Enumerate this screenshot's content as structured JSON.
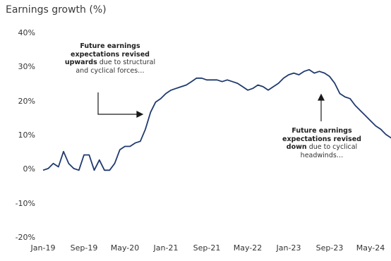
{
  "chart_data": {
    "type": "line",
    "title": "Earnings growth (%)",
    "xlabel": "",
    "ylabel": "",
    "ylim": [
      -20,
      40
    ],
    "yticks": [
      "40%",
      "30%",
      "20%",
      "10%",
      "0%",
      "-10%",
      "-20%"
    ],
    "ytick_values": [
      40,
      30,
      20,
      10,
      0,
      -10,
      -20
    ],
    "xticks": [
      "Jan-19",
      "Sep-19",
      "May-20",
      "Jan-21",
      "Sep-21",
      "May-22",
      "Jan-23",
      "Sep-23",
      "May-24"
    ],
    "xtick_values": [
      "2019-01",
      "2019-09",
      "2020-05",
      "2021-01",
      "2021-09",
      "2022-05",
      "2023-01",
      "2023-09",
      "2024-05"
    ],
    "grid": false,
    "line_color": "#1f3a6e",
    "series": [
      {
        "x": [
          "2019-01",
          "2019-02",
          "2019-03",
          "2019-04",
          "2019-05",
          "2019-06",
          "2019-07",
          "2019-08",
          "2019-09",
          "2019-10",
          "2019-11",
          "2019-12",
          "2020-01",
          "2020-02",
          "2020-03",
          "2020-04",
          "2020-05",
          "2020-06",
          "2020-07",
          "2020-08",
          "2020-09",
          "2020-10",
          "2020-11",
          "2020-12",
          "2021-01",
          "2021-02",
          "2021-03",
          "2021-04",
          "2021-05",
          "2021-06",
          "2021-07",
          "2021-08",
          "2021-09",
          "2021-10",
          "2021-11",
          "2021-12",
          "2022-01",
          "2022-02",
          "2022-03",
          "2022-04",
          "2022-05",
          "2022-06",
          "2022-07",
          "2022-08",
          "2022-09",
          "2022-10",
          "2022-11",
          "2022-12",
          "2023-01",
          "2023-02",
          "2023-03",
          "2023-04",
          "2023-05",
          "2023-06",
          "2023-07",
          "2023-08",
          "2023-09",
          "2023-10",
          "2023-11",
          "2023-12",
          "2024-01",
          "2024-02",
          "2024-03",
          "2024-04",
          "2024-05",
          "2024-06",
          "2024-07",
          "2024-08",
          "2024-09",
          "2024-10"
        ],
        "values": [
          0,
          0.5,
          2,
          1,
          5.5,
          2,
          0.5,
          0,
          4.5,
          4.5,
          0,
          3,
          0,
          0,
          2,
          6,
          7,
          7,
          8,
          8.5,
          12,
          17,
          20,
          21,
          22.5,
          23.5,
          24,
          24.5,
          25,
          26,
          27,
          27,
          26.5,
          26.5,
          26.5,
          26,
          26.5,
          26,
          25.5,
          24.5,
          23.5,
          24,
          25,
          24.5,
          23.5,
          24.5,
          25.5,
          27,
          28,
          28.5,
          28,
          29,
          29.5,
          28.5,
          29,
          28.5,
          27.5,
          25.5,
          22.5,
          21.5,
          21,
          19,
          17.5,
          16,
          14.5,
          13,
          12,
          10.5,
          9.5,
          9
        ]
      }
    ],
    "annotations": [
      {
        "bold1": "Future earnings",
        "bold2": "expectations revised",
        "bold3": "upwards",
        "normal3": " due to structural",
        "normal4": "and cyclical forces…"
      },
      {
        "bold1": "Future earnings",
        "bold2": "expectations revised",
        "bold3": "down",
        "normal3": " due to cyclical",
        "normal4": "headwinds…"
      }
    ]
  }
}
